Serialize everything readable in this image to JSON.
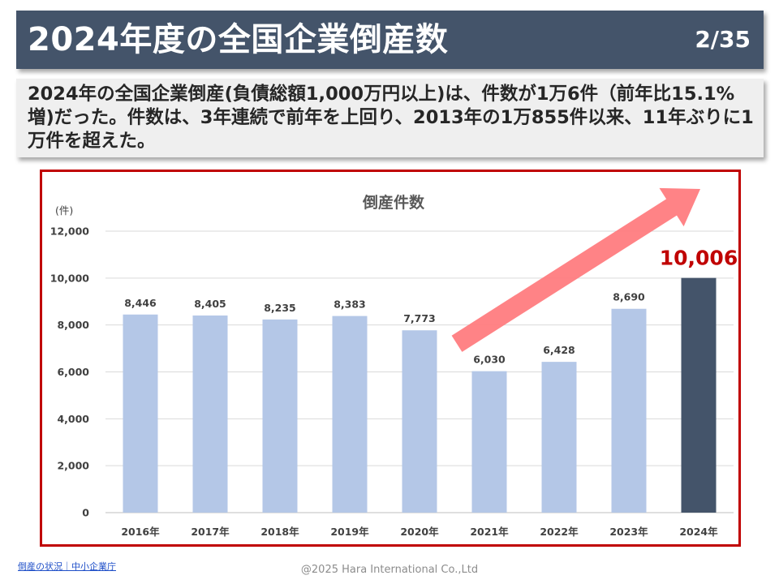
{
  "slide": {
    "title": "2024年度の全国企業倒産数",
    "page": "2/35",
    "summary": "2024年の全国企業倒産(負債総額1,000万円以上)は、件数が1万6件（前年比15.1%増)だった。件数は、3年連続で前年を上回り、2013年の1万855件以来、11年ぶりに1万件を超えた。",
    "source_link": "倒産の状況｜中小企業庁",
    "copyright": "@2025 Hara International Co.,Ltd"
  },
  "colors": {
    "header": "#44546a",
    "bar": "#b4c7e7",
    "bar_highlight": "#44546a",
    "frame": "#c00000",
    "arrow": "#ff7c80",
    "highlight_label": "#c00000"
  },
  "chart_data": {
    "type": "bar",
    "title": "倒産件数",
    "ylabel": "(件)",
    "xlabel": "",
    "categories": [
      "2016年",
      "2017年",
      "2018年",
      "2019年",
      "2020年",
      "2021年",
      "2022年",
      "2023年",
      "2024年"
    ],
    "values": [
      8446,
      8405,
      8235,
      8383,
      7773,
      6030,
      6428,
      8690,
      10006
    ],
    "data_labels": [
      "8,446",
      "8,405",
      "8,235",
      "8,383",
      "7,773",
      "6,030",
      "6,428",
      "8,690",
      "10,006"
    ],
    "highlight_index": 8,
    "ylim": [
      0,
      12000
    ],
    "yticks": [
      0,
      2000,
      4000,
      6000,
      8000,
      10000,
      12000
    ],
    "ytick_labels": [
      "0",
      "2,000",
      "4,000",
      "6,000",
      "8,000",
      "10,000",
      "12,000"
    ],
    "grid": true,
    "legend": "none",
    "annotation": "upward trend arrow from 2020年 to 2024年"
  }
}
